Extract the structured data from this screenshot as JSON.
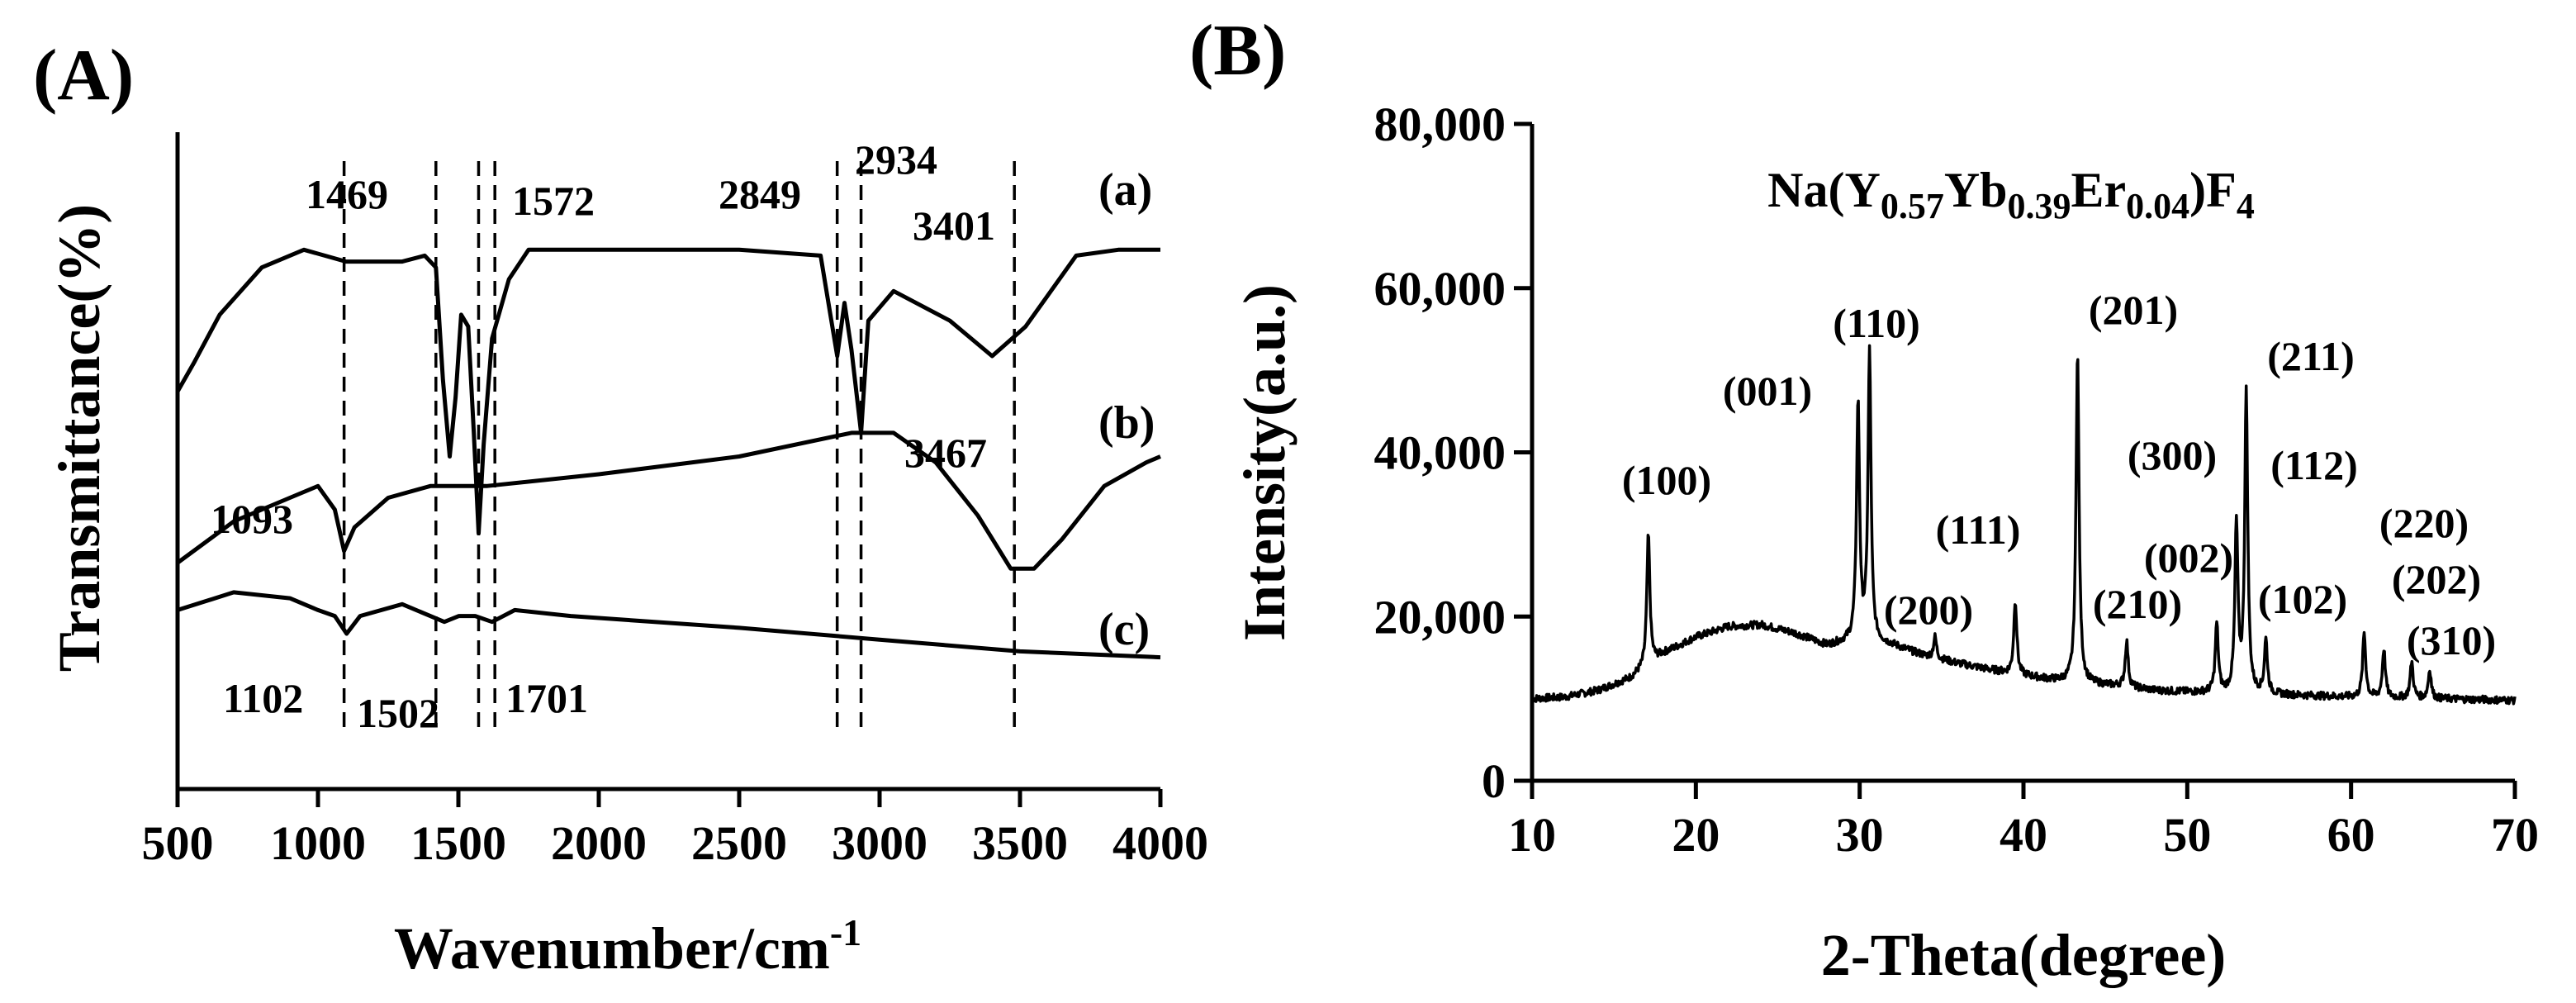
{
  "chart_data": [
    {
      "panel": "(A)",
      "type": "line",
      "xlabel": "Wavenumber/cm",
      "xlabel_superscript": "-1",
      "ylabel": "Transmittance(%)",
      "xlim": [
        500,
        4000
      ],
      "xticks": [
        500,
        1000,
        1500,
        2000,
        2500,
        3000,
        3500,
        4000
      ],
      "y_ticks_shown": false,
      "grid": false,
      "series": [
        {
          "name": "(a)",
          "points": [
            [
              500,
              0.39
            ],
            [
              560,
              0.34
            ],
            [
              650,
              0.26
            ],
            [
              800,
              0.18
            ],
            [
              950,
              0.15
            ],
            [
              1100,
              0.17
            ],
            [
              1300,
              0.17
            ],
            [
              1380,
              0.16
            ],
            [
              1420,
              0.18
            ],
            [
              1445,
              0.37
            ],
            [
              1469,
              0.5
            ],
            [
              1490,
              0.4
            ],
            [
              1510,
              0.26
            ],
            [
              1535,
              0.28
            ],
            [
              1555,
              0.46
            ],
            [
              1572,
              0.63
            ],
            [
              1590,
              0.48
            ],
            [
              1620,
              0.3
            ],
            [
              1680,
              0.2
            ],
            [
              1750,
              0.15
            ],
            [
              2000,
              0.15
            ],
            [
              2500,
              0.15
            ],
            [
              2790,
              0.16
            ],
            [
              2849,
              0.33
            ],
            [
              2875,
              0.24
            ],
            [
              2900,
              0.32
            ],
            [
              2934,
              0.46
            ],
            [
              2960,
              0.27
            ],
            [
              3050,
              0.22
            ],
            [
              3250,
              0.27
            ],
            [
              3401,
              0.33
            ],
            [
              3520,
              0.28
            ],
            [
              3700,
              0.16
            ],
            [
              3850,
              0.15
            ],
            [
              4000,
              0.15
            ]
          ]
        },
        {
          "name": "(b)",
          "points": [
            [
              500,
              0.68
            ],
            [
              700,
              0.61
            ],
            [
              900,
              0.57
            ],
            [
              1000,
              0.55
            ],
            [
              1060,
              0.59
            ],
            [
              1093,
              0.66
            ],
            [
              1130,
              0.62
            ],
            [
              1250,
              0.57
            ],
            [
              1400,
              0.55
            ],
            [
              1600,
              0.55
            ],
            [
              2000,
              0.53
            ],
            [
              2500,
              0.5
            ],
            [
              2900,
              0.46
            ],
            [
              3050,
              0.46
            ],
            [
              3200,
              0.51
            ],
            [
              3350,
              0.6
            ],
            [
              3467,
              0.69
            ],
            [
              3550,
              0.69
            ],
            [
              3650,
              0.64
            ],
            [
              3800,
              0.55
            ],
            [
              3950,
              0.51
            ],
            [
              4000,
              0.5
            ]
          ]
        },
        {
          "name": "(c)",
          "points": [
            [
              500,
              0.76
            ],
            [
              700,
              0.73
            ],
            [
              900,
              0.74
            ],
            [
              1000,
              0.76
            ],
            [
              1060,
              0.77
            ],
            [
              1102,
              0.8
            ],
            [
              1150,
              0.77
            ],
            [
              1300,
              0.75
            ],
            [
              1450,
              0.78
            ],
            [
              1502,
              0.77
            ],
            [
              1560,
              0.77
            ],
            [
              1620,
              0.78
            ],
            [
              1701,
              0.76
            ],
            [
              1900,
              0.77
            ],
            [
              2500,
              0.79
            ],
            [
              3000,
              0.81
            ],
            [
              3500,
              0.83
            ],
            [
              4000,
              0.84
            ]
          ]
        }
      ],
      "series_labels": [
        "(a)",
        "(b)",
        "(c)"
      ],
      "peak_labels": [
        "1469",
        "1572",
        "2849",
        "2934",
        "3401",
        "3467",
        "1093",
        "1102",
        "1502",
        "1701"
      ],
      "dashed_markers": [
        1093,
        1420,
        1572,
        1630,
        2849,
        2934,
        3480
      ]
    },
    {
      "panel": "(B)",
      "type": "line",
      "title": "Na(Y0.57Yb0.39Er0.04)F4",
      "title_parts": {
        "a": "Na(Y",
        "b": "0.57",
        "c": "Yb",
        "d": "0.39",
        "e": "Er",
        "f": "0.04",
        "g": ")F",
        "h": "4"
      },
      "xlabel": "2-Theta(degree)",
      "ylabel": "Intensity(a.u.)",
      "xlim": [
        10,
        70
      ],
      "ylim": [
        0,
        80000
      ],
      "xticks": [
        10,
        20,
        30,
        40,
        50,
        60,
        70
      ],
      "ytick_labels": [
        "0",
        "20,000",
        "40,000",
        "60,000",
        "80,000"
      ],
      "ytick_values": [
        0,
        20000,
        40000,
        60000,
        80000
      ],
      "grid": false,
      "background": [
        [
          10,
          10000
        ],
        [
          12,
          10200
        ],
        [
          14,
          11000
        ],
        [
          16,
          12500
        ],
        [
          18,
          15500
        ],
        [
          20,
          17500
        ],
        [
          22,
          18800
        ],
        [
          24,
          19000
        ],
        [
          26,
          18000
        ],
        [
          28,
          16500
        ],
        [
          30,
          17200
        ],
        [
          32,
          16500
        ],
        [
          34,
          15200
        ],
        [
          36,
          14300
        ],
        [
          38,
          13500
        ],
        [
          40,
          12800
        ],
        [
          42,
          12200
        ],
        [
          44,
          11800
        ],
        [
          46,
          11500
        ],
        [
          48,
          11000
        ],
        [
          50,
          10800
        ],
        [
          55,
          10500
        ],
        [
          60,
          10200
        ],
        [
          65,
          10000
        ],
        [
          70,
          9800
        ]
      ],
      "peaks": [
        {
          "x": 17.1,
          "y": 30000,
          "label": "(100)"
        },
        {
          "x": 29.9,
          "y": 46000,
          "label": "(001)"
        },
        {
          "x": 30.6,
          "y": 52000,
          "label": "(110)"
        },
        {
          "x": 34.6,
          "y": 17500,
          "label": "(200)"
        },
        {
          "x": 39.5,
          "y": 22000,
          "label": "(111)"
        },
        {
          "x": 43.3,
          "y": 52500,
          "label": "(201)"
        },
        {
          "x": 46.3,
          "y": 17000,
          "label": "(210)"
        },
        {
          "x": 51.8,
          "y": 19000,
          "label": "(002)"
        },
        {
          "x": 53.0,
          "y": 31000,
          "label": "(300)"
        },
        {
          "x": 53.6,
          "y": 47000,
          "label": "(211)"
        },
        {
          "x": 54.8,
          "y": 17000,
          "label": "(102)"
        },
        {
          "x": 60.8,
          "y": 18000,
          "label": "(112)"
        },
        {
          "x": 62.0,
          "y": 16000,
          "label": "(220)"
        },
        {
          "x": 63.7,
          "y": 14500,
          "label": "(202)"
        },
        {
          "x": 64.8,
          "y": 13500,
          "label": "(310)"
        }
      ]
    }
  ]
}
